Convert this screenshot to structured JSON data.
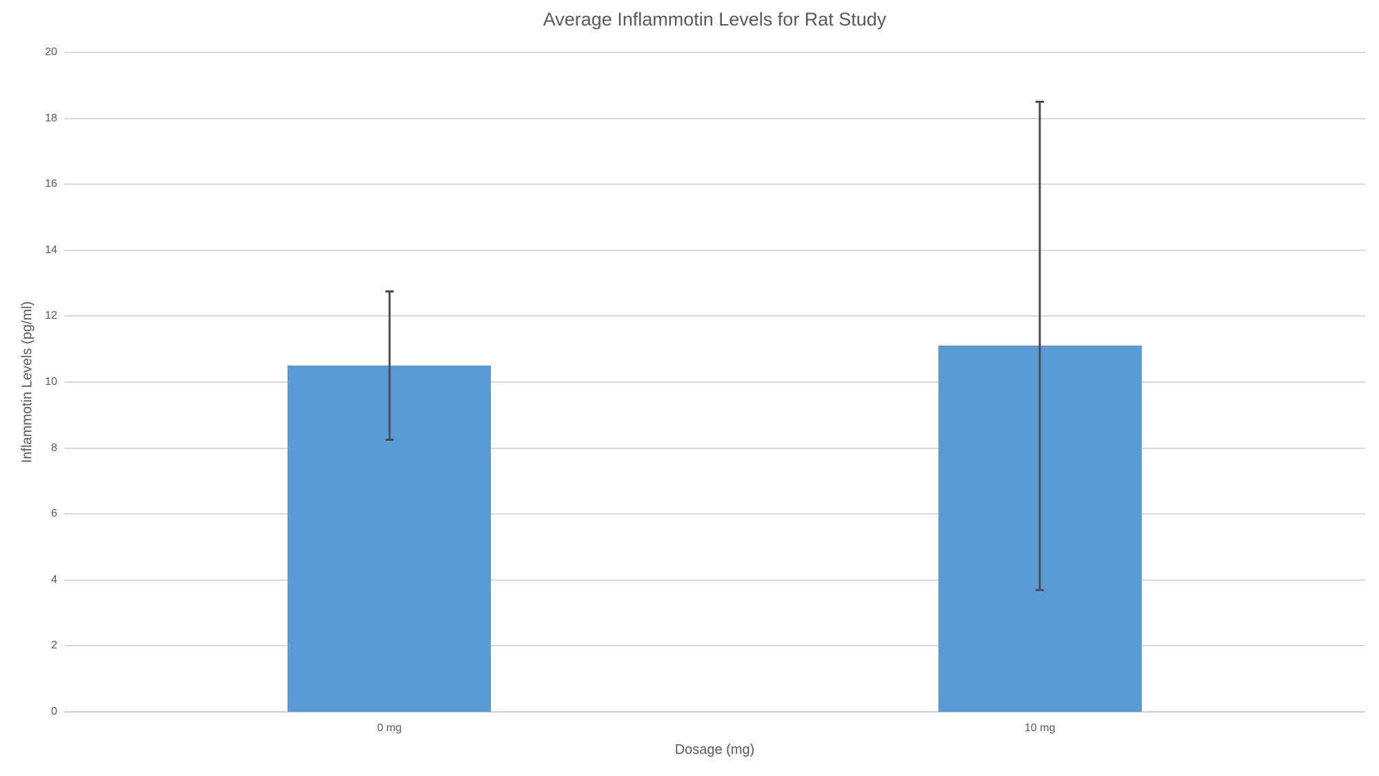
{
  "chart_data": {
    "type": "bar",
    "title": "Average Inflammotin Levels for Rat Study",
    "xlabel": "Dosage (mg)",
    "ylabel": "Inflammotin Levels (pg/ml)",
    "categories": [
      "0 mg",
      "10 mg"
    ],
    "values": [
      10.5,
      11.1
    ],
    "error_bars": {
      "type": "symmetric",
      "values": [
        2.25,
        7.4
      ],
      "ranges": [
        [
          8.25,
          12.75
        ],
        [
          3.7,
          18.5
        ]
      ]
    },
    "ylim": [
      0,
      20
    ],
    "ytick_step": 2,
    "ytick_labels": [
      "0",
      "2",
      "4",
      "6",
      "8",
      "10",
      "12",
      "14",
      "16",
      "18",
      "20"
    ],
    "grid": "horizontal",
    "legend": "none",
    "colors": {
      "bar": "#5b9bd5",
      "error_bar": "#4c4c4c",
      "gridline": "#d9d9d9",
      "axis_line": "#cfcfcf",
      "text": "#595959",
      "background": "#ffffff"
    }
  }
}
